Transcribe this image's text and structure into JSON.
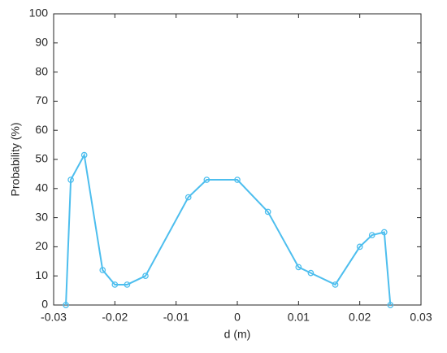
{
  "chart_data": {
    "type": "line",
    "xlabel": "d (m)",
    "ylabel": "Probability (%)",
    "x": [
      -0.028,
      -0.0272,
      -0.025,
      -0.022,
      -0.02,
      -0.018,
      -0.015,
      -0.008,
      -0.005,
      0,
      0.005,
      0.01,
      0.012,
      0.016,
      0.02,
      0.022,
      0.024,
      0.025
    ],
    "series": [
      {
        "color": "#4dbeee",
        "values": [
          0,
          43,
          51.5,
          12,
          7,
          7,
          10,
          37,
          43,
          43,
          32,
          13,
          11,
          7,
          20,
          24,
          25,
          0
        ]
      }
    ],
    "xlim": [
      -0.03,
      0.03
    ],
    "xticks": [
      -0.03,
      -0.02,
      -0.01,
      0,
      0.01,
      0.02,
      0.03
    ],
    "ylim": [
      0,
      100
    ],
    "yticks": [
      0,
      10,
      20,
      30,
      40,
      50,
      60,
      70,
      80,
      90,
      100
    ]
  }
}
